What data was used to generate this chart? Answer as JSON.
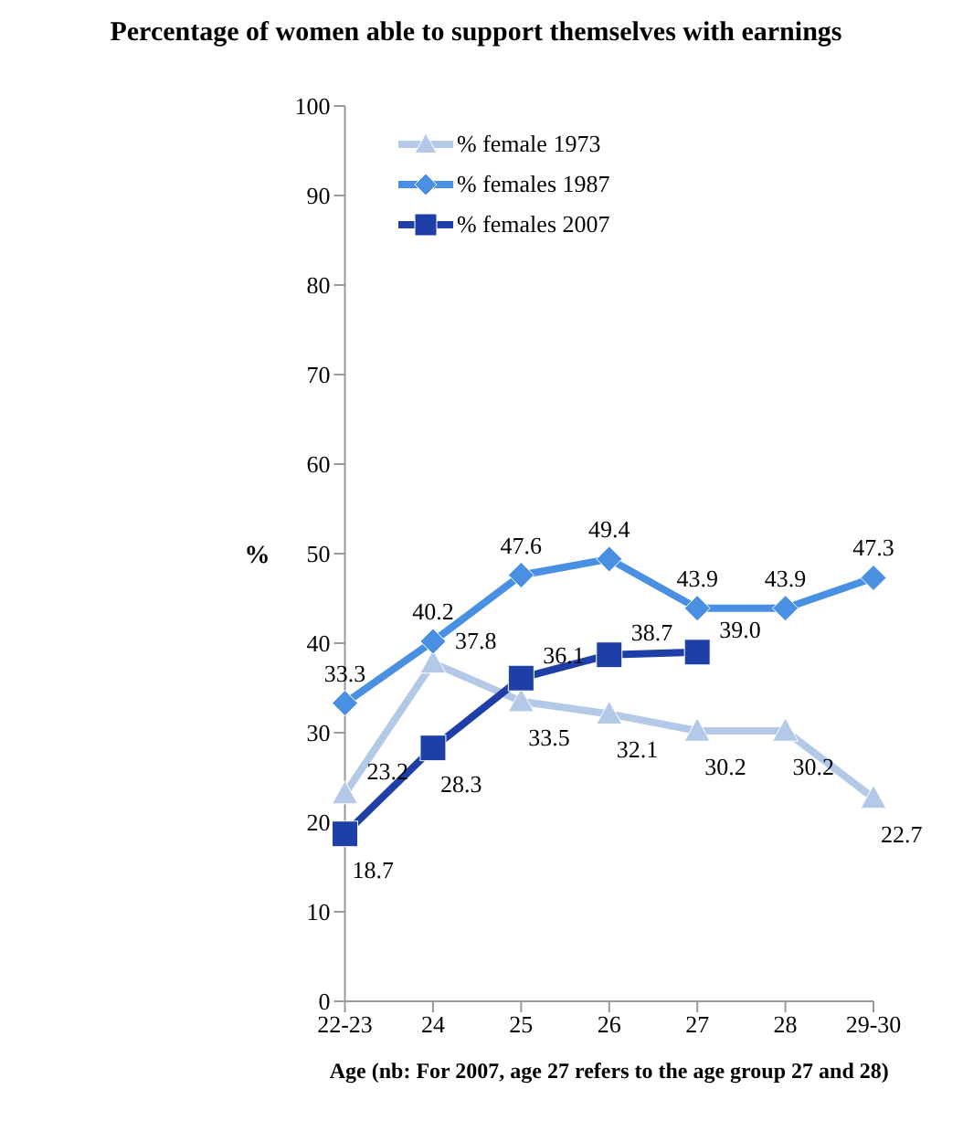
{
  "chart_data": {
    "type": "line",
    "title": "Percentage of women able to support themselves with earnings",
    "xlabel": "Age (nb: For 2007, age 27 refers to the age group 27 and 28)",
    "ylabel": "%",
    "categories": [
      "22-23",
      "24",
      "25",
      "26",
      "27",
      "28",
      "29-30"
    ],
    "series": [
      {
        "name": "% female 1973",
        "color": "#b4c8e8",
        "marker": "triangle",
        "values": [
          23.2,
          37.8,
          33.5,
          32.1,
          30.2,
          30.2,
          22.7
        ],
        "value_labels": [
          "23.2",
          "37.8",
          "33.5",
          "32.1",
          "30.2",
          "30.2",
          "22.7"
        ]
      },
      {
        "name": "% females 1987",
        "color": "#4a90e2",
        "marker": "diamond",
        "values": [
          33.3,
          40.2,
          47.6,
          49.4,
          43.9,
          43.9,
          47.3
        ],
        "value_labels": [
          "33.3",
          "40.2",
          "47.6",
          "49.4",
          "43.9",
          "43.9",
          "47.3"
        ]
      },
      {
        "name": "% females 2007",
        "color": "#1f3fa8",
        "marker": "square",
        "values": [
          18.7,
          28.3,
          36.1,
          38.7,
          39.0,
          null,
          null
        ],
        "value_labels": [
          "18.7",
          "28.3",
          "36.1",
          "38.7",
          "39.0",
          null,
          null
        ]
      }
    ],
    "ylim": [
      0,
      100
    ],
    "yticks": [
      0,
      10,
      20,
      30,
      40,
      50,
      60,
      70,
      80,
      90,
      100
    ],
    "grid": false,
    "legend": "top left"
  }
}
